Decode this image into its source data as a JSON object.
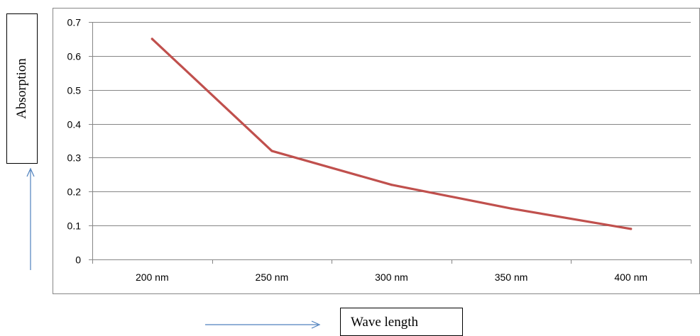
{
  "chart_data": {
    "type": "line",
    "title": "",
    "categories": [
      "200 nm",
      "250 nm",
      "300 nm",
      "350 nm",
      "400 nm"
    ],
    "series": [
      {
        "values": [
          0.65,
          0.32,
          0.22,
          0.15,
          0.09
        ]
      }
    ],
    "xlabel": "Wave length",
    "ylabel": "Absorption",
    "ylim": [
      0,
      0.7
    ],
    "yticks": [
      "0",
      "0.1",
      "0.2",
      "0.3",
      "0.4",
      "0.5",
      "0.6",
      "0.7"
    ],
    "grid": true,
    "legend": "none"
  },
  "colors": {
    "series": "#c0504d",
    "grid": "#868686",
    "arrow": "#4f81bd",
    "frame": "#868686"
  }
}
